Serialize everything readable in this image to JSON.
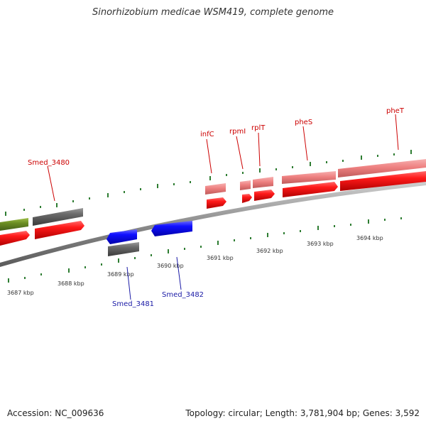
{
  "title": "Sinorhizobium medicae WSM419, complete genome",
  "footer": {
    "accession": "Accession: NC_009636",
    "summary": "Topology: circular; Length: 3,781,904 bp; Genes: 3,592"
  },
  "colors": {
    "backbone": "#8c8c8c",
    "forward_cds": "#ff0000",
    "forward_gene_light": "#f08080",
    "reverse_gene": "#0000ff",
    "gray_gene": "#606060",
    "green_gene": "#6b8e23",
    "tick": "#2e7d32",
    "label_forward": "#cc0000",
    "label_reverse": "#1a1aa6"
  },
  "scale": {
    "unit": "kbp",
    "ticks": [
      {
        "label": "3687 kbp"
      },
      {
        "label": "3688 kbp"
      },
      {
        "label": "3689 kbp"
      },
      {
        "label": "3690 kbp"
      },
      {
        "label": "3691 kbp"
      },
      {
        "label": "3692 kbp"
      },
      {
        "label": "3693 kbp"
      },
      {
        "label": "3694 kbp"
      }
    ]
  },
  "gene_labels": [
    {
      "name": "Smed_3480",
      "strand": "forward"
    },
    {
      "name": "infC",
      "strand": "forward"
    },
    {
      "name": "rpmI",
      "strand": "forward"
    },
    {
      "name": "rplT",
      "strand": "forward"
    },
    {
      "name": "pheS",
      "strand": "forward"
    },
    {
      "name": "pheT",
      "strand": "forward"
    },
    {
      "name": "Smed_3481",
      "strand": "reverse"
    },
    {
      "name": "Smed_3482",
      "strand": "reverse"
    }
  ]
}
